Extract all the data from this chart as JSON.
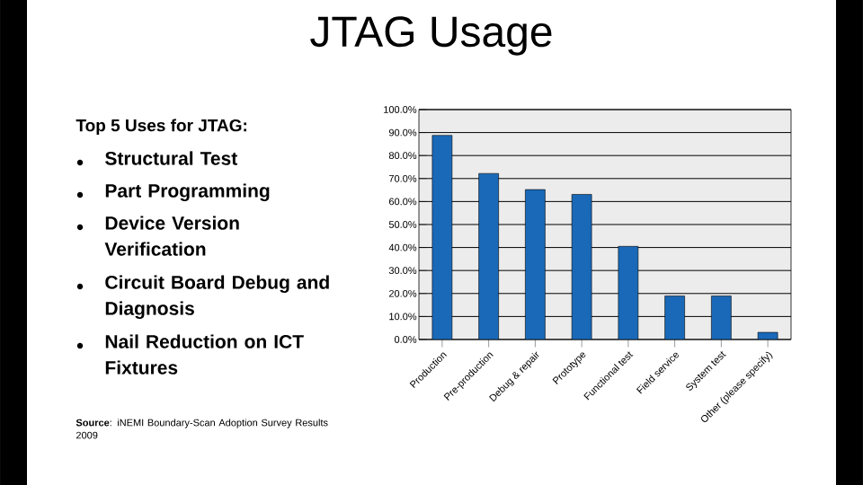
{
  "chart_data": {
    "type": "bar",
    "title": "JTAG Usage",
    "categories": [
      "Production",
      "Pre-production",
      "Debug & repair",
      "Prototype",
      "Functional test",
      "Field service",
      "System test",
      "Other (please specify)"
    ],
    "values": [
      88.8,
      72.2,
      65.2,
      63.1,
      40.5,
      18.9,
      18.9,
      3.1
    ],
    "color": "#1a69b8",
    "ylim": [
      0,
      100
    ],
    "yticks": [
      {
        "value": 0,
        "label": "0.0%"
      },
      {
        "value": 10,
        "label": "10.0%"
      },
      {
        "value": 20,
        "label": "20.0%"
      },
      {
        "value": 30,
        "label": "30.0%"
      },
      {
        "value": 40,
        "label": "40.0%"
      },
      {
        "value": 50,
        "label": "50.0%"
      },
      {
        "value": 60,
        "label": "60.0%"
      },
      {
        "value": 70,
        "label": "70.0%"
      },
      {
        "value": 80,
        "label": "80.0%"
      },
      {
        "value": 90,
        "label": "90.0%"
      },
      {
        "value": 100,
        "label": "100.0%"
      }
    ],
    "grid": "y",
    "annotations": [
      "Top 5 Uses for JTAG:",
      "Structural Test",
      "Part Programming",
      "Device Version Verification",
      "Circuit Board Debug and Diagnosis",
      "Nail Reduction on ICT Fixtures",
      "**Source**: iNEMI Boundary-Scan Adoption Survey Results 2009"
    ]
  }
}
